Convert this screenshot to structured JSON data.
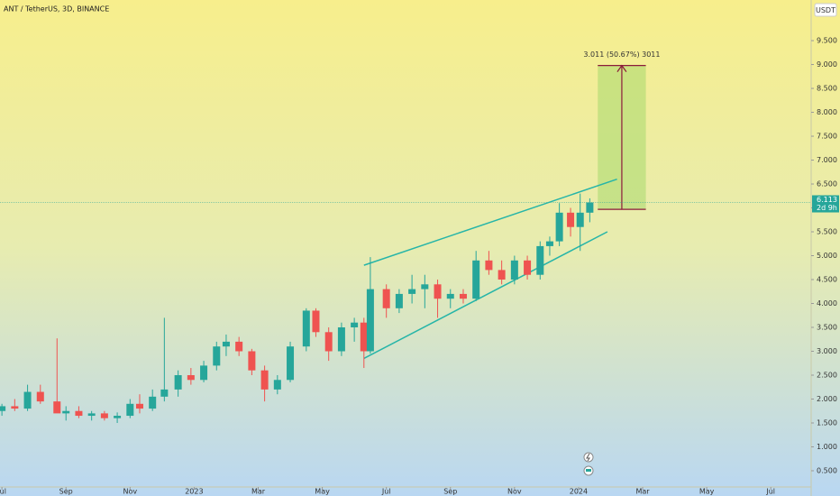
{
  "chart_data": {
    "type": "candlestick",
    "title": "ANT / TetherUS, 3D, BINANCE",
    "currency": "USDT",
    "up_color": "#26a69a",
    "down_color": "#ef5350",
    "xlim": [
      -0.06,
      25.26
    ],
    "xticks": [
      {
        "value": 0,
        "label": "Jul"
      },
      {
        "value": 2,
        "label": "Sep"
      },
      {
        "value": 4,
        "label": "Nov"
      },
      {
        "value": 6,
        "label": "2023"
      },
      {
        "value": 8,
        "label": "Mar"
      },
      {
        "value": 10,
        "label": "May"
      },
      {
        "value": 12,
        "label": "Jul"
      },
      {
        "value": 14,
        "label": "Sep"
      },
      {
        "value": 16,
        "label": "Nov"
      },
      {
        "value": 18,
        "label": "2024"
      },
      {
        "value": 20,
        "label": "Mar"
      },
      {
        "value": 22,
        "label": "May"
      },
      {
        "value": 24,
        "label": "Jul"
      }
    ],
    "ylim": [
      0.16,
      10.35
    ],
    "yticks": [
      {
        "value": 0.5,
        "label": "0.500"
      },
      {
        "value": 1,
        "label": "1.000"
      },
      {
        "value": 1.5,
        "label": "1.500"
      },
      {
        "value": 2,
        "label": "2.000"
      },
      {
        "value": 2.5,
        "label": "2.500"
      },
      {
        "value": 3,
        "label": "3.000"
      },
      {
        "value": 3.5,
        "label": "3.500"
      },
      {
        "value": 4,
        "label": "4.000"
      },
      {
        "value": 4.5,
        "label": "4.500"
      },
      {
        "value": 5,
        "label": "5.000"
      },
      {
        "value": 5.5,
        "label": "5.500"
      },
      {
        "value": 6,
        "label": "6.000"
      },
      {
        "value": 6.5,
        "label": "6.500"
      },
      {
        "value": 7,
        "label": "7.000"
      },
      {
        "value": 7.5,
        "label": "7.500"
      },
      {
        "value": 8,
        "label": "8.000"
      },
      {
        "value": 8.5,
        "label": "8.500"
      },
      {
        "value": 9,
        "label": "9.000"
      },
      {
        "value": 9.5,
        "label": "9.500"
      }
    ],
    "x": [
      0.0,
      0.4,
      0.8,
      1.2,
      1.72,
      2.0,
      2.4,
      2.8,
      3.2,
      3.6,
      4.0,
      4.3,
      4.7,
      5.07,
      5.5,
      5.9,
      6.3,
      6.7,
      7.0,
      7.4,
      7.8,
      8.2,
      8.6,
      9.0,
      9.5,
      9.8,
      10.2,
      10.6,
      11.0,
      11.3,
      11.5,
      12.0,
      12.4,
      12.8,
      13.2,
      13.6,
      14.0,
      14.4,
      14.8,
      15.2,
      15.6,
      16.0,
      16.4,
      16.8,
      17.1,
      17.4,
      17.75,
      18.05,
      18.35
    ],
    "open": [
      1.75,
      1.85,
      1.8,
      2.15,
      1.95,
      1.7,
      1.75,
      1.65,
      1.7,
      1.6,
      1.65,
      1.9,
      1.8,
      2.05,
      2.2,
      2.5,
      2.4,
      2.7,
      3.1,
      3.2,
      3.0,
      2.6,
      2.2,
      2.4,
      3.1,
      3.85,
      3.4,
      3.0,
      3.5,
      3.6,
      3.0,
      4.3,
      3.9,
      4.2,
      4.3,
      4.4,
      4.1,
      4.2,
      4.1,
      4.9,
      4.7,
      4.5,
      4.9,
      4.6,
      5.2,
      5.3,
      5.9,
      5.6,
      5.9
    ],
    "high": [
      1.9,
      2.0,
      2.3,
      2.3,
      3.27,
      1.85,
      1.85,
      1.75,
      1.75,
      1.72,
      2.0,
      2.1,
      2.2,
      3.7,
      2.6,
      2.65,
      2.8,
      3.2,
      3.35,
      3.3,
      3.05,
      2.7,
      2.5,
      3.2,
      3.9,
      3.9,
      3.5,
      3.6,
      3.7,
      3.7,
      4.97,
      4.4,
      4.3,
      4.6,
      4.6,
      4.5,
      4.3,
      4.3,
      5.1,
      5.1,
      4.9,
      5.0,
      5.0,
      5.3,
      5.4,
      6.1,
      6.0,
      6.3,
      6.2
    ],
    "low": [
      1.65,
      1.75,
      1.75,
      1.9,
      1.8,
      1.55,
      1.6,
      1.55,
      1.55,
      1.5,
      1.6,
      1.7,
      1.75,
      1.95,
      2.05,
      2.3,
      2.35,
      2.6,
      2.9,
      2.9,
      2.5,
      1.95,
      2.1,
      2.35,
      3.0,
      3.3,
      2.8,
      2.9,
      3.2,
      2.65,
      2.95,
      3.7,
      3.8,
      4.0,
      3.9,
      3.7,
      3.9,
      4.0,
      4.05,
      4.6,
      4.4,
      4.4,
      4.5,
      4.5,
      5.0,
      5.2,
      5.4,
      5.1,
      5.7
    ],
    "close": [
      1.85,
      1.8,
      2.15,
      1.95,
      1.7,
      1.75,
      1.65,
      1.7,
      1.6,
      1.65,
      1.9,
      1.8,
      2.05,
      2.2,
      2.5,
      2.4,
      2.7,
      3.1,
      3.2,
      3.0,
      2.6,
      2.2,
      2.4,
      3.1,
      3.85,
      3.4,
      3.0,
      3.5,
      3.6,
      3.0,
      4.3,
      3.9,
      4.2,
      4.3,
      4.4,
      4.1,
      4.2,
      4.1,
      4.9,
      4.7,
      4.5,
      4.9,
      4.6,
      5.2,
      5.3,
      5.9,
      5.6,
      5.9,
      6.113
    ],
    "last_price": {
      "value": 6.113,
      "label": "6.113",
      "countdown": "2d 9h"
    },
    "channel": {
      "color": "#26b5a8",
      "upper": {
        "x": [
          11.3,
          19.2
        ],
        "y": [
          4.8,
          6.6
        ]
      },
      "lower": {
        "x": [
          11.3,
          18.9
        ],
        "y": [
          2.85,
          5.5
        ]
      }
    },
    "measure": {
      "label": "3.011 (50.67%) 3011",
      "x": [
        18.6,
        20.1
      ],
      "y": [
        5.97,
        8.98
      ],
      "color": "#8b1a3a",
      "fill": "#a8d86e"
    }
  }
}
